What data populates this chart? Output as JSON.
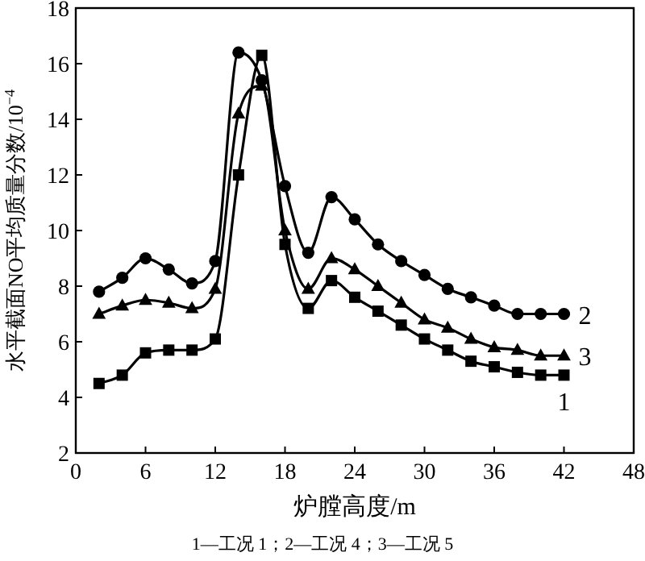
{
  "chart_data": {
    "type": "line",
    "xlabel": "炉膛高度/m",
    "ylabel": "水平截面NO平均质量分数/10$^{−4}$",
    "x": [
      2,
      4,
      6,
      8,
      10,
      12,
      14,
      16,
      18,
      20,
      22,
      24,
      26,
      28,
      30,
      32,
      34,
      36,
      38,
      40,
      42
    ],
    "series": [
      {
        "name": "1",
        "color": "#000000",
        "marker": "square",
        "values": [
          4.5,
          4.8,
          5.6,
          5.7,
          5.7,
          6.1,
          12.0,
          16.3,
          9.5,
          7.2,
          8.2,
          7.6,
          7.1,
          6.6,
          6.1,
          5.7,
          5.3,
          5.1,
          4.9,
          4.8,
          4.8
        ]
      },
      {
        "name": "2",
        "color": "#000000",
        "marker": "circle",
        "values": [
          7.8,
          8.3,
          9.0,
          8.6,
          8.1,
          8.9,
          16.4,
          15.4,
          11.6,
          9.2,
          11.2,
          10.4,
          9.5,
          8.9,
          8.4,
          7.9,
          7.6,
          7.3,
          7.0,
          7.0,
          7.0
        ]
      },
      {
        "name": "3",
        "color": "#000000",
        "marker": "triangle",
        "values": [
          7.0,
          7.3,
          7.5,
          7.4,
          7.2,
          7.9,
          14.2,
          15.2,
          10.0,
          7.9,
          9.0,
          8.6,
          8.0,
          7.4,
          6.8,
          6.5,
          6.1,
          5.8,
          5.7,
          5.5,
          5.5
        ]
      }
    ],
    "xlim": [
      0,
      48
    ],
    "xticks": [
      0,
      6,
      12,
      18,
      24,
      30,
      36,
      42,
      48
    ],
    "ylim": [
      2,
      18
    ],
    "yticks": [
      2,
      4,
      6,
      8,
      10,
      12,
      14,
      16,
      18
    ],
    "grid": false,
    "line_style": "solid",
    "annotations": [
      "1—工况 1；2—工况 4；3—工况 5"
    ]
  }
}
